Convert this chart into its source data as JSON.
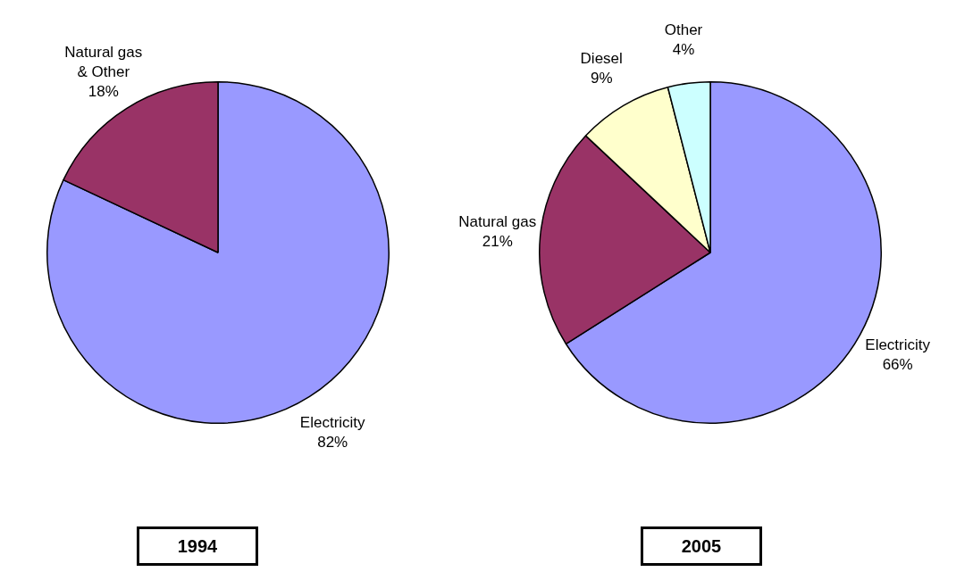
{
  "chart_data": [
    {
      "type": "pie",
      "title": "1994",
      "categories": [
        "Electricity",
        "Natural gas\n& Other"
      ],
      "values": [
        82,
        18
      ],
      "value_labels": [
        "82%",
        "18%"
      ],
      "colors": [
        "#9999ff",
        "#993366"
      ],
      "legend": false
    },
    {
      "type": "pie",
      "title": "2005",
      "categories": [
        "Electricity",
        "Natural gas",
        "Diesel",
        "Other"
      ],
      "values": [
        66,
        21,
        9,
        4
      ],
      "value_labels": [
        "66%",
        "21%",
        "9%",
        "4%"
      ],
      "colors": [
        "#9999ff",
        "#993366",
        "#ffffcc",
        "#ccffff"
      ],
      "legend": false
    }
  ]
}
